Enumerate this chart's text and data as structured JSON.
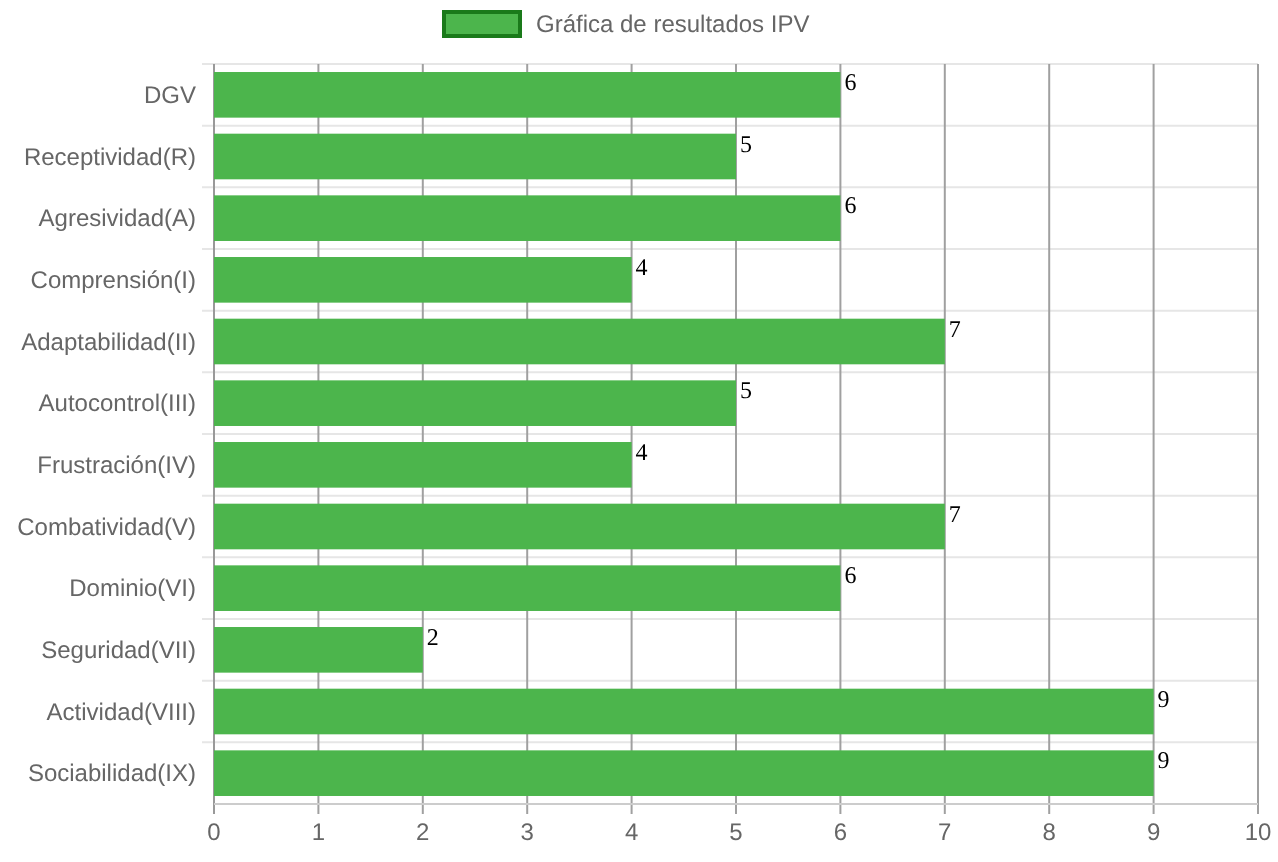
{
  "chart_data": {
    "type": "bar",
    "orientation": "horizontal",
    "categories": [
      "DGV",
      "Receptividad(R)",
      "Agresividad(A)",
      "Comprensión(I)",
      "Adaptabilidad(II)",
      "Autocontrol(III)",
      "Frustración(IV)",
      "Combatividad(V)",
      "Dominio(VI)",
      "Seguridad(VII)",
      "Actividad(VIII)",
      "Sociabilidad(IX)"
    ],
    "series": [
      {
        "name": "Gráfica de resultados IPV",
        "color": "#4cb54c",
        "values": [
          6,
          5,
          6,
          4,
          7,
          5,
          4,
          7,
          6,
          2,
          9,
          9
        ]
      }
    ],
    "xlim": [
      0,
      10
    ],
    "xticks": [
      0,
      1,
      2,
      3,
      4,
      5,
      6,
      7,
      8,
      9,
      10
    ],
    "grid": true,
    "legend": "top",
    "data_labels": true
  }
}
